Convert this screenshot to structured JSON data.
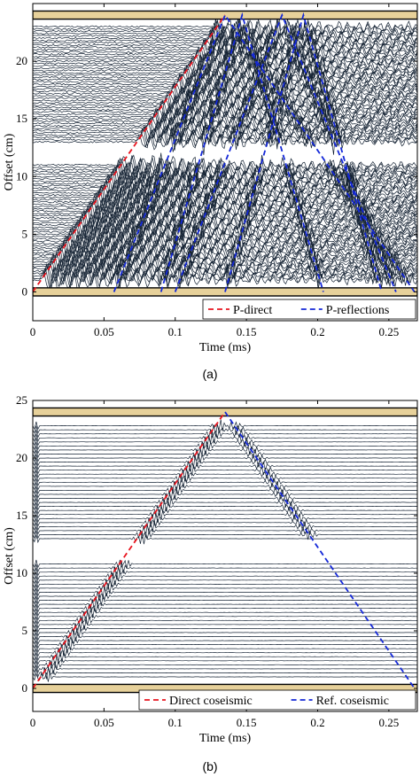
{
  "figure": {
    "captions": [
      "(a)",
      "(b)"
    ]
  },
  "colors": {
    "trace": "#142233",
    "direct": "#e8141e",
    "reflection": "#1428d8",
    "boundary": "#000000",
    "boundary_fill": "#e7d19a"
  },
  "chart_data": [
    {
      "type": "line",
      "panel": "a",
      "xlabel": "Time (ms)",
      "ylabel": "Offset (cm)",
      "xlim": [
        0,
        0.27
      ],
      "ylim": [
        -2.5,
        25
      ],
      "xticks": [
        0,
        0.05,
        0.1,
        0.15,
        0.2,
        0.25
      ],
      "xtick_labels": [
        "0",
        "0.05",
        "0.1",
        "0.15",
        "0.2",
        "0.25"
      ],
      "yticks": [
        0,
        5,
        10,
        15,
        20
      ],
      "ytick_labels": [
        "0",
        "5",
        "10",
        "15",
        "20"
      ],
      "grid": false,
      "legend": {
        "placement": "bottom-right"
      },
      "boundaries": [
        0,
        24
      ],
      "trace_bands": [
        [
          1,
          11
        ],
        [
          13,
          23
        ]
      ],
      "trace_spacing": 0.2,
      "series": [
        {
          "name": "P-direct",
          "style": "dashed",
          "color_key": "direct",
          "x": [
            0,
            0.135
          ],
          "y": [
            0,
            24
          ]
        },
        {
          "name": "P-reflections",
          "style": "dashed",
          "color_key": "reflection",
          "x": [
            0.057,
            0.135,
            0.268
          ],
          "y": [
            0,
            24,
            0
          ]
        },
        {
          "name": "",
          "style": "dashed",
          "color_key": "reflection",
          "x": [
            0.09,
            0.147,
            0.204
          ],
          "y": [
            0,
            24,
            0
          ]
        },
        {
          "name": "",
          "style": "dashed",
          "color_key": "reflection",
          "x": [
            0.1,
            0.175,
            0.255
          ],
          "y": [
            0,
            24,
            0
          ]
        },
        {
          "name": "",
          "style": "dashed",
          "color_key": "reflection",
          "x": [
            0.135,
            0.19,
            0.245
          ],
          "y": [
            0,
            24,
            0
          ]
        }
      ]
    },
    {
      "type": "line",
      "panel": "b",
      "xlabel": "Time (ms)",
      "ylabel": "Offset (cm)",
      "xlim": [
        0,
        0.27
      ],
      "ylim": [
        -2,
        25
      ],
      "xticks": [
        0,
        0.05,
        0.1,
        0.15,
        0.2,
        0.25
      ],
      "xtick_labels": [
        "0",
        "0.05",
        "0.1",
        "0.15",
        "0.2",
        "0.25"
      ],
      "yticks": [
        0,
        5,
        10,
        15,
        20,
        25
      ],
      "ytick_labels": [
        "0",
        "5",
        "10",
        "15",
        "20",
        "25"
      ],
      "grid": false,
      "legend": {
        "placement": "bottom-right"
      },
      "boundaries": [
        0,
        24
      ],
      "trace_bands": [
        [
          1,
          11
        ],
        [
          13,
          23
        ]
      ],
      "trace_spacing": 0.35,
      "series": [
        {
          "name": "Direct coseismic",
          "style": "dashed",
          "color_key": "direct",
          "x": [
            0,
            0.135
          ],
          "y": [
            0,
            24
          ]
        },
        {
          "name": "Ref. coseismic",
          "style": "dashed",
          "color_key": "reflection",
          "x": [
            0.135,
            0.268
          ],
          "y": [
            24,
            0
          ]
        }
      ]
    }
  ]
}
